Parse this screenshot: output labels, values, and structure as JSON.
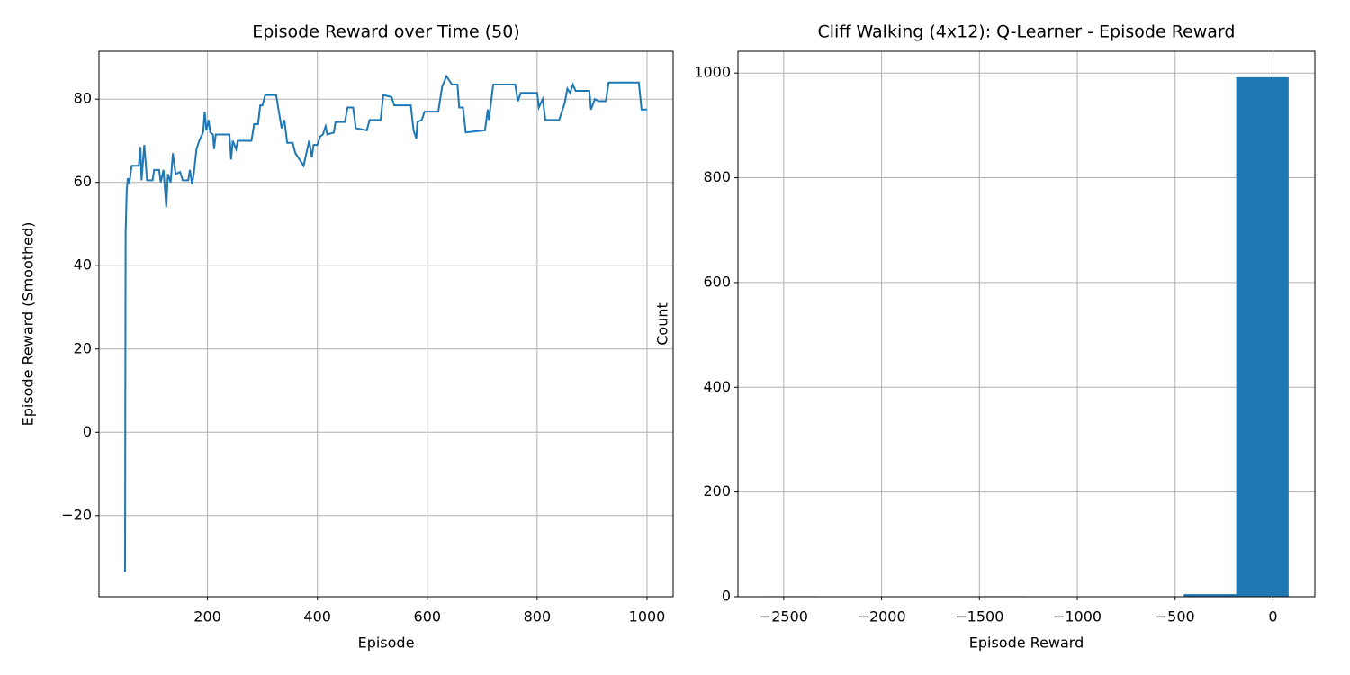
{
  "chart_data": [
    {
      "type": "line",
      "title": "Episode Reward over Time (50)",
      "xlabel": "Episode",
      "ylabel": "Episode Reward (Smoothed)",
      "color": "#1f77b4",
      "grid": true,
      "xlim": [
        2.5,
        1047.5
      ],
      "ylim": [
        -39.5,
        91.5
      ],
      "xticks": [
        200,
        400,
        600,
        800,
        1000
      ],
      "yticks": [
        {
          "value": -20,
          "label": "−20"
        },
        0,
        20,
        40,
        60,
        80
      ],
      "x": [
        50,
        51,
        53,
        55,
        58,
        62,
        75,
        78,
        80,
        85,
        90,
        100,
        103,
        112,
        115,
        120,
        125,
        128,
        133,
        137,
        142,
        150,
        155,
        165,
        168,
        172,
        175,
        180,
        185,
        192,
        195,
        198,
        202,
        205,
        210,
        212,
        215,
        240,
        243,
        246,
        252,
        255,
        280,
        285,
        292,
        296,
        300,
        305,
        325,
        328,
        335,
        340,
        345,
        355,
        360,
        375,
        380,
        385,
        390,
        393,
        400,
        405,
        410,
        415,
        418,
        430,
        433,
        450,
        455,
        465,
        470,
        490,
        495,
        515,
        520,
        535,
        540,
        570,
        575,
        580,
        582,
        590,
        595,
        620,
        627,
        635,
        645,
        655,
        658,
        665,
        670,
        705,
        710,
        712,
        720,
        760,
        765,
        770,
        800,
        803,
        810,
        815,
        840,
        845,
        850,
        855,
        860,
        865,
        870,
        895,
        898,
        905,
        912,
        925,
        930,
        985,
        990,
        1000
      ],
      "values": [
        -33.5,
        48,
        58,
        61,
        60,
        64,
        64,
        68.5,
        60.5,
        69,
        60.5,
        60.5,
        63,
        63,
        60,
        63,
        54,
        62,
        60,
        67,
        62,
        62.5,
        60.5,
        60.5,
        63,
        59.5,
        62,
        68,
        70,
        72,
        77,
        72.5,
        75,
        72,
        71.5,
        68,
        71.5,
        71.5,
        65.5,
        70,
        68,
        70,
        70,
        74,
        74,
        78.5,
        78.5,
        81,
        81,
        78.5,
        73,
        75,
        69.5,
        69.5,
        67,
        64,
        67,
        70,
        66,
        69,
        69,
        71,
        71.5,
        73.5,
        71.5,
        72,
        74.5,
        74.5,
        78,
        78,
        73,
        72.5,
        75,
        75,
        81,
        80.5,
        78.5,
        78.5,
        72.5,
        70.5,
        74.5,
        75,
        77,
        77,
        83,
        85.5,
        83.5,
        83.5,
        78,
        78,
        72,
        72.5,
        77.5,
        75,
        83.5,
        83.5,
        79.5,
        81.5,
        81.5,
        78,
        80,
        75,
        75,
        77,
        79,
        82.5,
        81.5,
        83.5,
        82,
        82,
        77.5,
        80,
        79.5,
        79.5,
        84,
        84,
        77.5,
        77.5
      ]
    },
    {
      "type": "histogram",
      "title": "Cliff Walking (4x12): Q-Learner - Episode Reward",
      "xlabel": "Episode Reward",
      "ylabel": "Count",
      "color": "#1f77b4",
      "grid": true,
      "xlim": [
        -2734,
        214
      ],
      "ylim": [
        0,
        1041.6
      ],
      "xticks": [
        {
          "value": -2500,
          "label": "−2500"
        },
        {
          "value": -2000,
          "label": "−2000"
        },
        {
          "value": -1500,
          "label": "−1500"
        },
        {
          "value": -1000,
          "label": "−1000"
        },
        {
          "value": -500,
          "label": "−500"
        },
        0
      ],
      "yticks": [
        0,
        200,
        400,
        600,
        800,
        1000
      ],
      "bins": [
        -2600,
        -2332,
        -2064,
        -1796,
        -1528,
        -1260,
        -992,
        -724,
        -456,
        -188,
        80
      ],
      "values": [
        1,
        0,
        0,
        0,
        1,
        0,
        0,
        0,
        5,
        992
      ]
    }
  ]
}
